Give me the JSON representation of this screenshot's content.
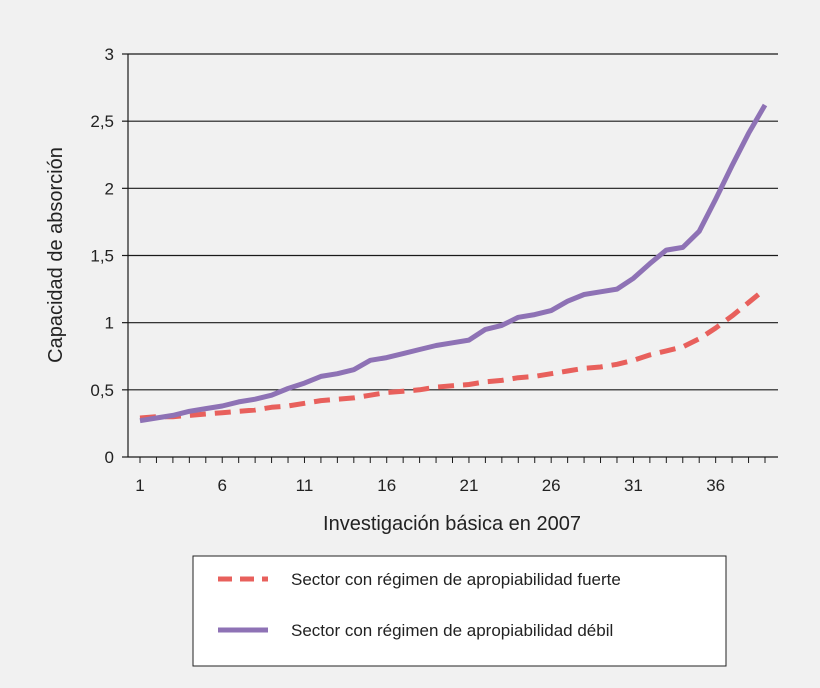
{
  "chart_data": {
    "type": "line",
    "title": "",
    "xlabel": "Investigación básica en 2007",
    "ylabel": "Capacidad de absorción",
    "xlim": [
      1,
      39
    ],
    "ylim": [
      0,
      3
    ],
    "x_ticks": [
      1,
      6,
      11,
      16,
      21,
      26,
      31,
      36
    ],
    "x_tick_labels": [
      "1",
      "6",
      "11",
      "16",
      "21",
      "26",
      "31",
      "36"
    ],
    "y_ticks": [
      0,
      0.5,
      1,
      1.5,
      2,
      2.5,
      3
    ],
    "y_tick_labels": [
      "0",
      "0,5",
      "1",
      "1,5",
      "2",
      "2,5",
      "3"
    ],
    "grid": "horizontal",
    "legend_position": "bottom",
    "x": [
      1,
      2,
      3,
      4,
      5,
      6,
      7,
      8,
      9,
      10,
      11,
      12,
      13,
      14,
      15,
      16,
      17,
      18,
      19,
      20,
      21,
      22,
      23,
      24,
      25,
      26,
      27,
      28,
      29,
      30,
      31,
      32,
      33,
      34,
      35,
      36,
      37,
      38,
      39
    ],
    "series": [
      {
        "name": "Sector con régimen de apropiabilidad fuerte",
        "style": "dashed",
        "color": "#e8605c",
        "values": [
          0.29,
          0.3,
          0.3,
          0.31,
          0.32,
          0.33,
          0.34,
          0.35,
          0.37,
          0.38,
          0.4,
          0.42,
          0.43,
          0.44,
          0.46,
          0.48,
          0.49,
          0.5,
          0.52,
          0.53,
          0.54,
          0.56,
          0.57,
          0.59,
          0.6,
          0.62,
          0.64,
          0.66,
          0.67,
          0.69,
          0.72,
          0.76,
          0.79,
          0.82,
          0.88,
          0.96,
          1.05,
          1.15,
          1.25
        ]
      },
      {
        "name": "Sector con régimen de apropiabilidad débil",
        "style": "solid",
        "color": "#8e72b5",
        "values": [
          0.27,
          0.29,
          0.31,
          0.34,
          0.36,
          0.38,
          0.41,
          0.43,
          0.46,
          0.51,
          0.55,
          0.6,
          0.62,
          0.65,
          0.72,
          0.74,
          0.77,
          0.8,
          0.83,
          0.85,
          0.87,
          0.95,
          0.98,
          1.04,
          1.06,
          1.09,
          1.16,
          1.21,
          1.23,
          1.25,
          1.33,
          1.44,
          1.54,
          1.56,
          1.68,
          1.92,
          2.17,
          2.41,
          2.62
        ]
      }
    ]
  }
}
